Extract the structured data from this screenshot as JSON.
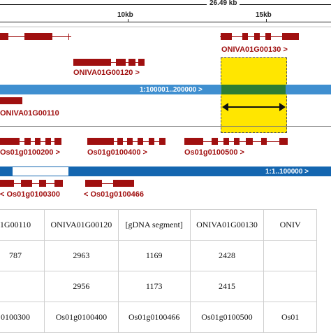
{
  "ruler": {
    "total": "26.49 kb",
    "ticks": [
      "10kb",
      "15kb"
    ]
  },
  "genes": {
    "niva_top_right": "ONIVA01G00130 >",
    "niva_mid": "ONIVA01G00120 >",
    "niva_left": "ONIVA01G00110",
    "os_200": "Os01g0100200 >",
    "os_400": "Os01g0100400 >",
    "os_500": "Os01g0100500 >",
    "os_300": "< Os01g0100300",
    "os_466": "< Os01g0100466"
  },
  "tracks": {
    "niva_track": "1:100001..200000 >",
    "os_track": "1:1..100000 >"
  },
  "highlight": {
    "color": "#ffe600"
  },
  "colors": {
    "gene": "#a01010",
    "track_light": "#3f8fd0",
    "track_dark": "#1466b0"
  },
  "table": {
    "rows": [
      [
        "1G00110",
        "ONIVA01G00120",
        "[gDNA segment]",
        "ONIVA01G00130",
        "ONIV"
      ],
      [
        "787",
        "2963",
        "1169",
        "2428",
        ""
      ],
      [
        "",
        "2956",
        "1173",
        "2415",
        ""
      ],
      [
        "0100300",
        "Os01g0100400",
        "Os01g0100466",
        "Os01g0100500",
        "Os01"
      ]
    ]
  }
}
